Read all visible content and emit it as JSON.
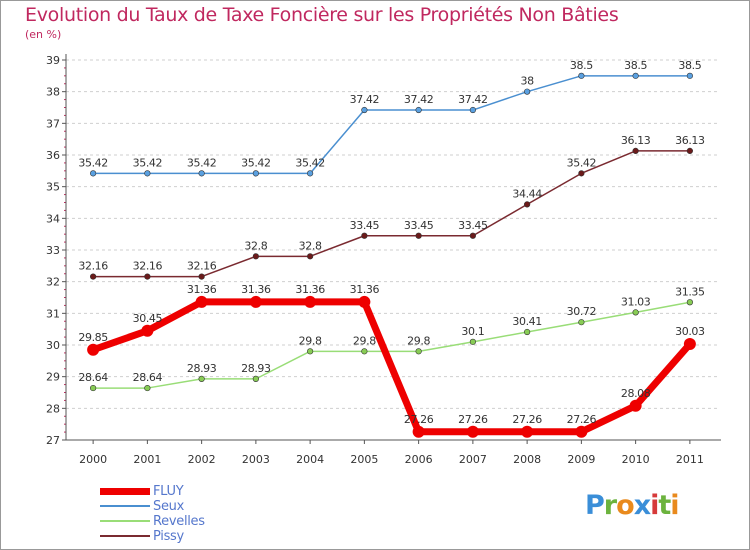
{
  "chart_data": {
    "type": "line",
    "title": "Evolution du Taux de Taxe Foncière sur les Propriétés Non Bâties",
    "unit_label": "(en %)",
    "x": [
      "2000",
      "2001",
      "2002",
      "2003",
      "2004",
      "2005",
      "2006",
      "2007",
      "2008",
      "2009",
      "2010",
      "2011"
    ],
    "ylim": [
      27,
      39
    ],
    "yticks": [
      27,
      28,
      29,
      30,
      31,
      32,
      33,
      34,
      35,
      36,
      37,
      38,
      39
    ],
    "grid": "horizontal dashed",
    "legend_position": "bottom-left",
    "series": [
      {
        "name": "Seux",
        "color": "#4a8fd0",
        "fill": "#5aa0e0",
        "width": 1.5,
        "marker": 2.8,
        "values": [
          35.42,
          35.42,
          35.42,
          35.42,
          35.42,
          37.42,
          37.42,
          37.42,
          38,
          38.5,
          38.5,
          38.5
        ],
        "labels": [
          "35.42",
          "35.42",
          "35.42",
          "35.42",
          "35.42",
          "37.42",
          "37.42",
          "37.42",
          "38",
          "38.5",
          "38.5",
          "38.5"
        ]
      },
      {
        "name": "Pissy",
        "color": "#7a2a30",
        "fill": "#6b1a1a",
        "width": 1.5,
        "marker": 2.8,
        "values": [
          32.16,
          32.16,
          32.16,
          32.8,
          32.8,
          33.45,
          33.45,
          33.45,
          34.44,
          35.42,
          36.13,
          36.13
        ],
        "labels": [
          "32.16",
          "32.16",
          "32.16",
          "32.8",
          "32.8",
          "33.45",
          "33.45",
          "33.45",
          "34.44",
          "35.42",
          "36.13",
          "36.13"
        ]
      },
      {
        "name": "Revelles",
        "color": "#99dd77",
        "fill": "#88cc55",
        "width": 1.5,
        "marker": 2.8,
        "values": [
          28.64,
          28.64,
          28.93,
          28.93,
          29.8,
          29.8,
          29.8,
          30.1,
          30.41,
          30.72,
          31.03,
          31.35
        ],
        "labels": [
          "28.64",
          "28.64",
          "28.93",
          "28.93",
          "29.8",
          "29.8",
          "29.8",
          "30.1",
          "30.41",
          "30.72",
          "31.03",
          "31.35"
        ]
      },
      {
        "name": "FLUY",
        "color": "#ee0000",
        "fill": "#ee0000",
        "width": 7,
        "marker": 6,
        "values": [
          29.85,
          30.45,
          31.36,
          31.36,
          31.36,
          31.36,
          27.26,
          27.26,
          27.26,
          27.26,
          28.08,
          30.03
        ],
        "labels": [
          "29.85",
          "30.45",
          "31.36",
          "31.36",
          "31.36",
          "31.36",
          "27.26",
          "27.26",
          "27.26",
          "27.26",
          "28.08",
          "30.03"
        ]
      }
    ]
  },
  "legend": [
    {
      "name": "FLUY",
      "color": "#ee0000"
    },
    {
      "name": "Seux",
      "color": "#4a8fd0"
    },
    {
      "name": "Revelles",
      "color": "#99dd77"
    },
    {
      "name": "Pissy",
      "color": "#7a2a30"
    }
  ],
  "logo": {
    "letters": [
      "P",
      "r",
      "o",
      "x",
      "i",
      "t",
      "i"
    ]
  }
}
